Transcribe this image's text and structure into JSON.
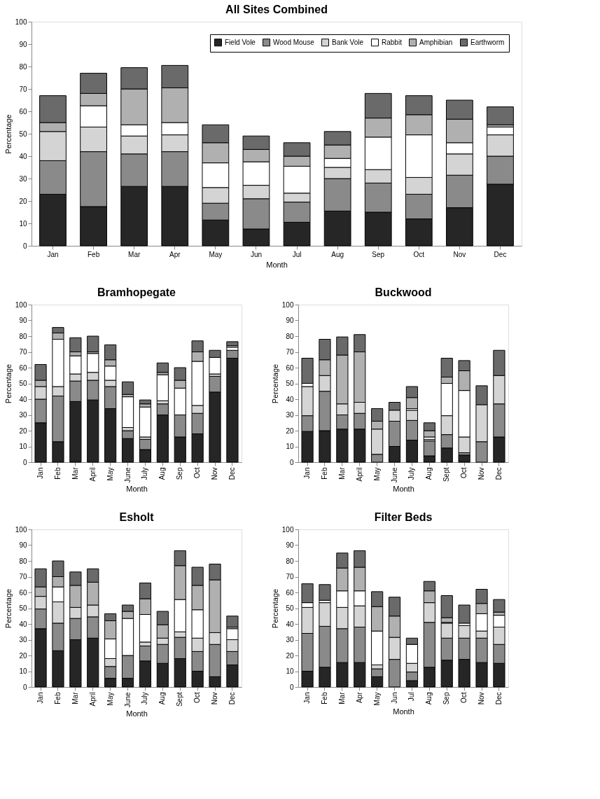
{
  "chart_data": [
    {
      "type": "bar",
      "title": "All Sites Combined",
      "xlabel": "Month",
      "ylabel": "Percentage",
      "stacked": true,
      "legend": "top right",
      "grid": false,
      "ylim": [
        0,
        100
      ],
      "yticks": [
        0,
        10,
        20,
        30,
        40,
        50,
        60,
        70,
        80,
        90,
        100
      ],
      "categories": [
        "Jan",
        "Feb",
        "Mar",
        "Apr",
        "May",
        "Jun",
        "Jul",
        "Aug",
        "Sep",
        "Oct",
        "Nov",
        "Dec"
      ],
      "series": [
        {
          "name": "Field Vole",
          "color": "#262626",
          "values": [
            23,
            17.5,
            26.5,
            26.5,
            11.5,
            7.5,
            10.5,
            15.5,
            15,
            12,
            17,
            27.5
          ]
        },
        {
          "name": "Wood Mouse",
          "color": "#8a8a8a",
          "values": [
            15,
            24.5,
            14.5,
            15.5,
            7.5,
            13.5,
            9,
            14.5,
            13,
            11,
            14.5,
            12.5
          ]
        },
        {
          "name": "Bank Vole",
          "color": "#d4d4d4",
          "values": [
            13,
            11,
            8,
            7.5,
            7,
            6,
            4,
            5,
            6,
            7.5,
            9.5,
            9.5
          ]
        },
        {
          "name": "Rabbit",
          "color": "#ffffff",
          "values": [
            0,
            9.5,
            5,
            5.5,
            11,
            10.5,
            12,
            4,
            14.5,
            19,
            5,
            3.5
          ]
        },
        {
          "name": "Amphibian",
          "color": "#b0b0b0",
          "values": [
            4,
            5.5,
            16,
            15.5,
            9,
            5.5,
            4.5,
            6,
            8.5,
            9,
            10.5,
            1
          ]
        },
        {
          "name": "Earthworm",
          "color": "#6a6a6a",
          "values": [
            12,
            9,
            9.5,
            10,
            8,
            6,
            6,
            6,
            11,
            8.5,
            8.5,
            8
          ]
        }
      ]
    },
    {
      "type": "bar",
      "title": "Bramhopegate",
      "xlabel": "Month",
      "ylabel": "Percentage",
      "stacked": true,
      "legend": false,
      "grid": false,
      "ylim": [
        0,
        100
      ],
      "yticks": [
        0,
        10,
        20,
        30,
        40,
        50,
        60,
        70,
        80,
        90,
        100
      ],
      "categories": [
        "Jan",
        "Feb",
        "Mar",
        "April",
        "May",
        "June",
        "July",
        "Aug",
        "Sep",
        "Oct",
        "Nov",
        "Dec"
      ],
      "series": [
        {
          "color": "#262626",
          "values": [
            25,
            13,
            38.5,
            39.5,
            34,
            15,
            8,
            30,
            16,
            18,
            44.5,
            66
          ]
        },
        {
          "color": "#8a8a8a",
          "values": [
            15,
            29,
            13,
            12.5,
            14,
            5,
            6.5,
            7,
            14,
            13,
            10,
            5
          ]
        },
        {
          "color": "#d4d4d4",
          "values": [
            8,
            6,
            4.5,
            5,
            4,
            2,
            1.5,
            2,
            0,
            5,
            1.5,
            0
          ]
        },
        {
          "color": "#ffffff",
          "values": [
            0,
            30,
            11.5,
            12,
            9,
            19.5,
            19,
            16.5,
            17,
            28,
            10.5,
            2
          ]
        },
        {
          "color": "#b0b0b0",
          "values": [
            4,
            4,
            2.5,
            1,
            4,
            1.5,
            2,
            1.5,
            5,
            6,
            0,
            1
          ]
        },
        {
          "color": "#6a6a6a",
          "values": [
            10,
            3.5,
            9,
            10,
            9.5,
            8,
            2.5,
            6,
            8,
            7,
            4.5,
            2.5
          ]
        }
      ]
    },
    {
      "type": "bar",
      "title": "Buckwood",
      "xlabel": "Month",
      "ylabel": "Percentage",
      "stacked": true,
      "legend": false,
      "grid": false,
      "ylim": [
        0,
        100
      ],
      "yticks": [
        0,
        10,
        20,
        30,
        40,
        50,
        60,
        70,
        80,
        90,
        100
      ],
      "categories": [
        "Jan",
        "Feb",
        "Mar",
        "April",
        "May",
        "June",
        "July",
        "Aug",
        "Sept",
        "Oct",
        "Nov",
        "Dec"
      ],
      "series": [
        {
          "color": "#262626",
          "values": [
            19.5,
            20,
            21,
            21,
            0,
            10,
            14,
            4,
            9,
            4.5,
            0,
            16
          ]
        },
        {
          "color": "#8a8a8a",
          "values": [
            10,
            25,
            9,
            10,
            5,
            16,
            12.5,
            9.5,
            8.5,
            1.5,
            13,
            21
          ]
        },
        {
          "color": "#d4d4d4",
          "values": [
            18.5,
            10,
            7,
            7,
            16,
            7,
            6.5,
            1,
            12,
            10,
            23.5,
            18
          ]
        },
        {
          "color": "#ffffff",
          "values": [
            2,
            0,
            0,
            0,
            0,
            0,
            1,
            1.5,
            20.5,
            29.5,
            0,
            0
          ]
        },
        {
          "color": "#b0b0b0",
          "values": [
            0,
            10,
            31,
            32,
            5,
            0,
            7,
            4,
            4,
            12.5,
            0,
            0
          ]
        },
        {
          "color": "#6a6a6a",
          "values": [
            16,
            13,
            11.5,
            11,
            8,
            5,
            7,
            5,
            12,
            6.5,
            12,
            16
          ]
        }
      ]
    },
    {
      "type": "bar",
      "title": "Esholt",
      "xlabel": "Month",
      "ylabel": "Percentage",
      "stacked": true,
      "legend": false,
      "grid": false,
      "ylim": [
        0,
        100
      ],
      "yticks": [
        0,
        10,
        20,
        30,
        40,
        50,
        60,
        70,
        80,
        90,
        100
      ],
      "categories": [
        "Jan",
        "Feb",
        "Mar",
        "April",
        "May",
        "June",
        "July",
        "Aug",
        "Sept",
        "Oct",
        "Nov",
        "Dec"
      ],
      "series": [
        {
          "color": "#262626",
          "values": [
            37,
            23,
            30,
            31,
            5.5,
            5.5,
            16.5,
            15,
            18,
            10,
            6.5,
            14
          ]
        },
        {
          "color": "#8a8a8a",
          "values": [
            12.5,
            17.5,
            13.5,
            13.5,
            7.5,
            14.5,
            9.5,
            12,
            13.5,
            12.5,
            20.5,
            8.5
          ]
        },
        {
          "color": "#d4d4d4",
          "values": [
            8,
            13.5,
            7,
            7.5,
            5,
            0,
            2.5,
            4,
            3.5,
            8.5,
            7.5,
            7.5
          ]
        },
        {
          "color": "#ffffff",
          "values": [
            0,
            9.5,
            0,
            0,
            12.5,
            23.5,
            17.5,
            0,
            20.5,
            18,
            0,
            7
          ]
        },
        {
          "color": "#b0b0b0",
          "values": [
            6,
            6.5,
            14,
            14.5,
            11.5,
            4.5,
            10,
            8.5,
            21.5,
            15.5,
            33.5,
            1
          ]
        },
        {
          "color": "#6a6a6a",
          "values": [
            11.5,
            10,
            8.5,
            8.5,
            4.5,
            4,
            10,
            8.5,
            9.5,
            11.5,
            10,
            7
          ]
        }
      ]
    },
    {
      "type": "bar",
      "title": "Filter Beds",
      "xlabel": "Month",
      "ylabel": "Percentage",
      "stacked": true,
      "legend": false,
      "grid": false,
      "ylim": [
        0,
        100
      ],
      "yticks": [
        0,
        10,
        20,
        30,
        40,
        50,
        60,
        70,
        80,
        90,
        100
      ],
      "categories": [
        "Jan",
        "Feb",
        "Mar",
        "Apr",
        "May",
        "Jun",
        "Jul",
        "Aug",
        "Sep",
        "Oct",
        "Nov",
        "Dec"
      ],
      "series": [
        {
          "color": "#262626",
          "values": [
            10,
            12.5,
            15.5,
            15.5,
            6.5,
            0,
            4,
            12.5,
            17,
            17.5,
            15.5,
            15
          ]
        },
        {
          "color": "#8a8a8a",
          "values": [
            24,
            26,
            21.5,
            22.5,
            5,
            17.5,
            5.5,
            28.5,
            14,
            13.5,
            15.5,
            12
          ]
        },
        {
          "color": "#d4d4d4",
          "values": [
            16.5,
            15,
            13.5,
            13.5,
            2.5,
            14,
            5.5,
            12.5,
            9.5,
            8,
            4.5,
            11
          ]
        },
        {
          "color": "#ffffff",
          "values": [
            3,
            1.5,
            10.5,
            9.5,
            21.5,
            0,
            12,
            0,
            0.5,
            1.5,
            11,
            7.5
          ]
        },
        {
          "color": "#b0b0b0",
          "values": [
            0,
            0,
            14.5,
            15,
            15.5,
            13.5,
            0,
            7.5,
            3,
            0,
            6.5,
            2
          ]
        },
        {
          "color": "#6a6a6a",
          "values": [
            12,
            10,
            9.5,
            10.5,
            9.5,
            12,
            4,
            6,
            14,
            11.5,
            9,
            8
          ]
        }
      ]
    }
  ]
}
